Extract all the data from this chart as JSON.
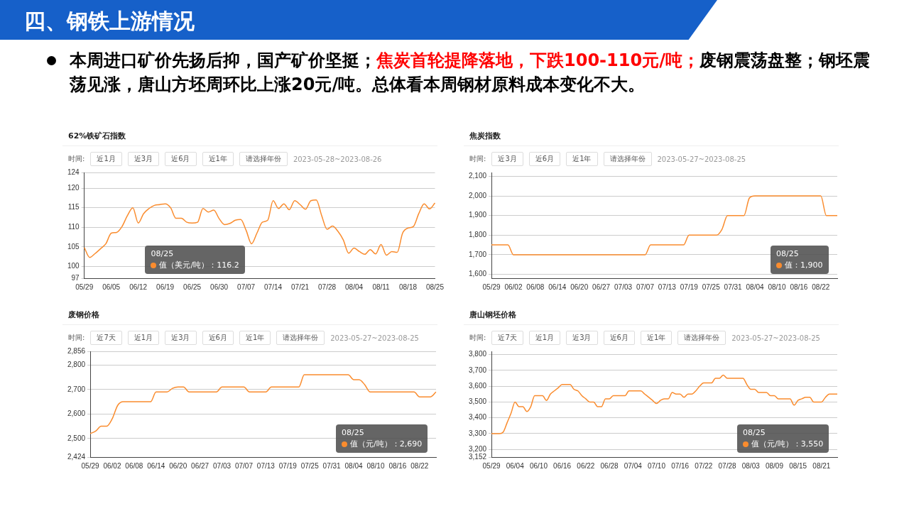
{
  "chart_data": [
    {
      "type": "other",
      "title": "四、钢铁上游情况",
      "annotations": [
        "本周进口矿价先扬后抑，国产矿价坚挺；",
        "焦炭首轮提降落地，下跌100-110元/吨；",
        "废钢震荡盘整；钢坯震荡见涨，唐山方坯周环比上涨20元/吨。总体看本周钢材原料成本变化不大。"
      ],
      "colors": [
        "#000000",
        "#ff0000",
        "#000000"
      ]
    },
    {
      "type": "line",
      "title": "62%铁矿石指数",
      "grid": "y",
      "ylim": [
        97,
        124
      ],
      "yticks": [
        97,
        100,
        105,
        110,
        115,
        120,
        124
      ],
      "categories": [
        "05/29",
        null,
        null,
        null,
        null,
        "06/05",
        null,
        null,
        null,
        null,
        "06/12",
        null,
        null,
        null,
        null,
        "06/19",
        null,
        null,
        null,
        null,
        "06/25",
        null,
        null,
        null,
        null,
        "06/30",
        null,
        null,
        null,
        null,
        "07/07",
        null,
        null,
        null,
        null,
        "07/14",
        null,
        null,
        null,
        null,
        "07/21",
        null,
        null,
        null,
        null,
        "07/28",
        null,
        null,
        null,
        null,
        "08/04",
        null,
        null,
        null,
        null,
        "08/11",
        null,
        null,
        null,
        null,
        "08/18",
        null,
        null,
        null,
        null,
        "08/25"
      ],
      "series": [
        {
          "color": "#fa8c2e",
          "values": [
            104.8,
            102.3,
            103.3,
            104.5,
            105.8,
            108.5,
            108.7,
            110.2,
            113,
            115,
            111.1,
            113.5,
            114.8,
            115.6,
            115.8,
            116,
            115,
            112.3,
            112.3,
            111.3,
            111.1,
            111.3,
            114.8,
            113.9,
            114.4,
            112.2,
            110.7,
            111,
            111.8,
            112,
            109.2,
            105.8,
            108.5,
            111.3,
            111.8,
            116.8,
            114.8,
            116,
            114.5,
            116.8,
            115.8,
            114.6,
            116.8,
            117,
            113,
            109.5,
            110.3,
            109,
            106.8,
            103.4,
            104.7,
            103.8,
            103.1,
            104.3,
            103.2,
            105.6,
            102.9,
            103.8,
            103.6,
            108.5,
            109.8,
            110.2,
            113.5,
            116,
            114.7,
            116.2
          ]
        }
      ],
      "annotations": [
        "时间:",
        "近1月",
        "近3月",
        "近6月",
        "近1年",
        "请选择年份",
        "2023-05-28~2023-08-26",
        "08/25\n值（美元/吨）：116.2"
      ]
    },
    {
      "type": "line",
      "title": "焦炭指数",
      "grid": "y",
      "ylim": [
        1580,
        2120
      ],
      "yticks": [
        {
          "value": 1600,
          "label": "1,600"
        },
        {
          "value": 1700,
          "label": "1,700"
        },
        {
          "value": 1800,
          "label": "1,800"
        },
        {
          "value": 1900,
          "label": "1,900"
        },
        {
          "value": 2000,
          "label": "2,000"
        },
        {
          "value": 2100,
          "label": "2,100"
        }
      ],
      "categories": [
        "05/29",
        null,
        null,
        null,
        "06/02",
        null,
        null,
        null,
        "06/08",
        null,
        null,
        null,
        "06/14",
        null,
        null,
        null,
        "06/20",
        null,
        null,
        null,
        "06/27",
        null,
        null,
        null,
        "07/03",
        null,
        null,
        null,
        "07/07",
        null,
        null,
        null,
        "07/13",
        null,
        null,
        null,
        "07/19",
        null,
        null,
        null,
        "07/25",
        null,
        null,
        null,
        "07/31",
        null,
        null,
        null,
        "08/04",
        null,
        null,
        null,
        "08/10",
        null,
        null,
        null,
        "08/16",
        null,
        null,
        null,
        "08/22",
        null,
        null,
        null
      ],
      "series": [
        {
          "color": "#fa8c2e",
          "values": [
            1750,
            1750,
            1750,
            1750,
            1700,
            1700,
            1700,
            1700,
            1700,
            1700,
            1700,
            1700,
            1700,
            1700,
            1700,
            1700,
            1700,
            1700,
            1700,
            1700,
            1700,
            1700,
            1700,
            1700,
            1700,
            1700,
            1700,
            1700,
            1700,
            1750,
            1750,
            1750,
            1750,
            1750,
            1750,
            1750,
            1800,
            1800,
            1800,
            1800,
            1800,
            1800,
            1830,
            1900,
            1900,
            1900,
            1900,
            1990,
            2000,
            2000,
            2000,
            2000,
            2000,
            2000,
            2000,
            2000,
            2000,
            2000,
            2000,
            2000,
            2000,
            1900,
            1900,
            1900
          ]
        }
      ],
      "annotations": [
        "时间:",
        "近3月",
        "近6月",
        "近1年",
        "请选择年份",
        "2023-05-27~2023-08-25",
        "08/25\n值：1,900"
      ]
    },
    {
      "type": "line",
      "title": "废钢价格",
      "grid": "y",
      "ylim": [
        2424,
        2856
      ],
      "yticks": [
        {
          "value": 2424,
          "label": "2,424"
        },
        {
          "value": 2500,
          "label": "2,500"
        },
        {
          "value": 2600,
          "label": "2,600"
        },
        {
          "value": 2700,
          "label": "2,700"
        },
        {
          "value": 2800,
          "label": "2,800"
        },
        {
          "value": 2856,
          "label": "2,856"
        }
      ],
      "categories": [
        "05/29",
        null,
        null,
        null,
        "06/02",
        null,
        null,
        null,
        "06/08",
        null,
        null,
        null,
        "06/14",
        null,
        null,
        null,
        "06/20",
        null,
        null,
        null,
        "06/27",
        null,
        null,
        null,
        "07/03",
        null,
        null,
        null,
        "07/07",
        null,
        null,
        null,
        "07/13",
        null,
        null,
        null,
        "07/19",
        null,
        null,
        null,
        "07/25",
        null,
        null,
        null,
        "07/31",
        null,
        null,
        null,
        "08/04",
        null,
        null,
        null,
        "08/10",
        null,
        null,
        null,
        "08/16",
        null,
        null,
        null,
        "08/22",
        null,
        null,
        null
      ],
      "series": [
        {
          "color": "#fa8c2e",
          "values": [
            2520,
            2530,
            2550,
            2550,
            2580,
            2635,
            2650,
            2650,
            2650,
            2650,
            2650,
            2650,
            2690,
            2690,
            2690,
            2705,
            2710,
            2710,
            2690,
            2690,
            2690,
            2690,
            2690,
            2690,
            2710,
            2710,
            2710,
            2710,
            2710,
            2690,
            2690,
            2690,
            2690,
            2710,
            2710,
            2710,
            2710,
            2710,
            2710,
            2760,
            2760,
            2760,
            2760,
            2760,
            2760,
            2760,
            2760,
            2760,
            2740,
            2740,
            2720,
            2690,
            2690,
            2690,
            2690,
            2690,
            2690,
            2690,
            2690,
            2690,
            2670,
            2670,
            2670,
            2690
          ]
        }
      ],
      "annotations": [
        "时间:",
        "近7天",
        "近1月",
        "近3月",
        "近6月",
        "近1年",
        "请选择年份",
        "2023-05-27~2023-08-25",
        "08/25\n值（元/吨）：2,690"
      ]
    },
    {
      "type": "line",
      "title": "唐山钢坯价格",
      "grid": "y",
      "ylim": [
        3152,
        3820
      ],
      "yticks": [
        {
          "value": 3152,
          "label": "3,152"
        },
        {
          "value": 3200,
          "label": "3,200"
        },
        {
          "value": 3300,
          "label": "3,300"
        },
        {
          "value": 3400,
          "label": "3,400"
        },
        {
          "value": 3500,
          "label": "3,500"
        },
        {
          "value": 3600,
          "label": "3,600"
        },
        {
          "value": 3700,
          "label": "3,700"
        },
        {
          "value": 3800,
          "label": "3,800"
        }
      ],
      "categories": [
        "05/29",
        null,
        null,
        null,
        null,
        null,
        "06/04",
        null,
        null,
        null,
        null,
        null,
        "06/10",
        null,
        null,
        null,
        null,
        null,
        "06/16",
        null,
        null,
        null,
        null,
        null,
        "06/22",
        null,
        null,
        null,
        null,
        null,
        "06/28",
        null,
        null,
        null,
        null,
        null,
        "07/04",
        null,
        null,
        null,
        null,
        null,
        "07/10",
        null,
        null,
        null,
        null,
        null,
        "07/16",
        null,
        null,
        null,
        null,
        null,
        "07/22",
        null,
        null,
        null,
        null,
        null,
        "07/28",
        null,
        null,
        null,
        null,
        null,
        "08/03",
        null,
        null,
        null,
        null,
        null,
        "08/09",
        null,
        null,
        null,
        null,
        null,
        "08/15",
        null,
        null,
        null,
        null,
        null,
        "08/21",
        null,
        null,
        null,
        null
      ],
      "series": [
        {
          "color": "#fa8c2e",
          "values": [
            3300,
            3300,
            3300,
            3310,
            3370,
            3430,
            3500,
            3470,
            3470,
            3440,
            3470,
            3540,
            3540,
            3540,
            3510,
            3550,
            3570,
            3590,
            3610,
            3610,
            3610,
            3580,
            3570,
            3540,
            3520,
            3500,
            3500,
            3470,
            3470,
            3520,
            3520,
            3540,
            3540,
            3540,
            3540,
            3570,
            3570,
            3570,
            3570,
            3550,
            3530,
            3510,
            3490,
            3510,
            3520,
            3520,
            3560,
            3550,
            3550,
            3530,
            3550,
            3550,
            3570,
            3600,
            3620,
            3620,
            3620,
            3650,
            3650,
            3670,
            3650,
            3650,
            3650,
            3650,
            3650,
            3610,
            3580,
            3580,
            3560,
            3560,
            3560,
            3540,
            3540,
            3520,
            3520,
            3520,
            3520,
            3480,
            3510,
            3520,
            3530,
            3530,
            3500,
            3500,
            3500,
            3530,
            3550,
            3550,
            3550
          ]
        }
      ],
      "annotations": [
        "时间:",
        "近7天",
        "近1月",
        "近3月",
        "近6月",
        "近1年",
        "请选择年份",
        "2023-05-27~2023-08-25",
        "08/25\n值（元/吨）：3,550"
      ]
    }
  ]
}
